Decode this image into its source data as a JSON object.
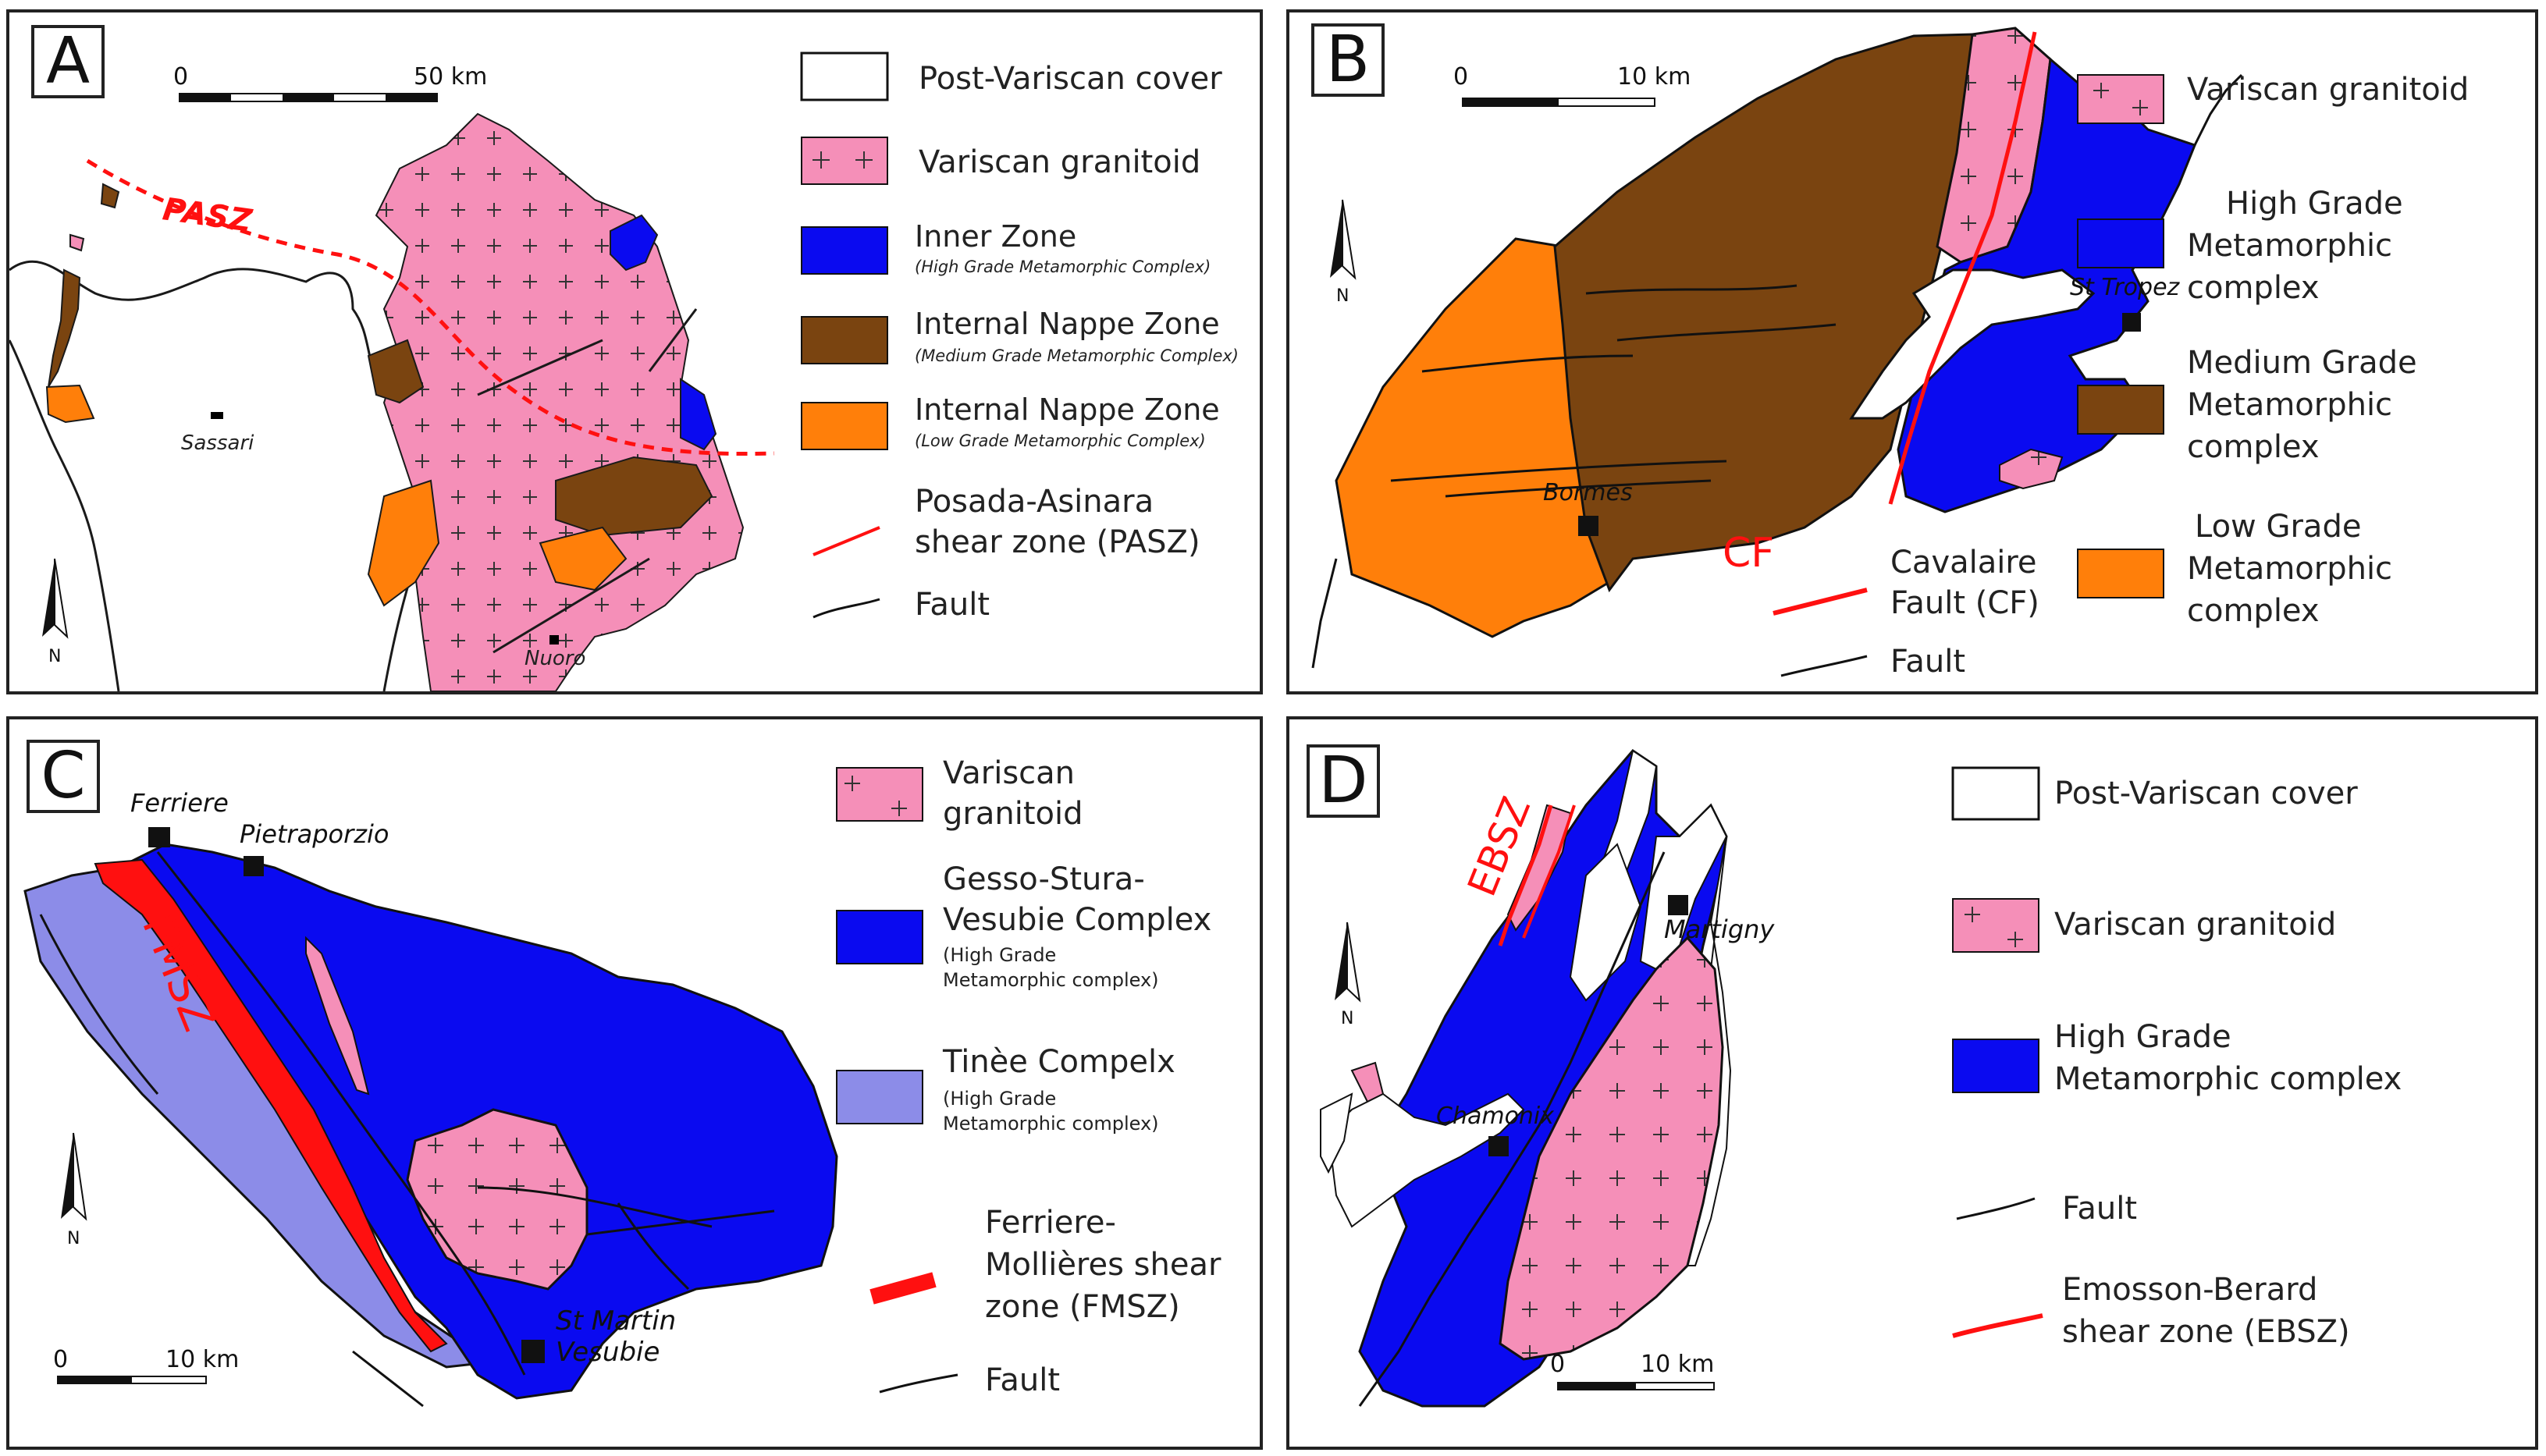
{
  "colors": {
    "cover": "#ffffff",
    "granitoid": "#f58fb8",
    "high_grade": "#0a0af0",
    "medium_grade": "#7a4410",
    "low_grade": "#ff7f0a",
    "tinee": "#8c8ce8",
    "shear": "#ff1010",
    "outline": "#1a1a1a"
  },
  "panelA": {
    "letter": "A",
    "scale": {
      "zero": "0",
      "end": "50 km"
    },
    "north": "N",
    "map": {
      "pasz": "PASZ",
      "sassari": "Sassari",
      "nuoro": "Nuoro"
    },
    "legend": {
      "cover": "Post-Variscan cover",
      "granitoid": "Variscan granitoid",
      "inner_title": "Inner Zone",
      "inner_sub": "(High Grade Metamorphic Complex)",
      "nappe_med_title": "Internal Nappe Zone",
      "nappe_med_sub": "(Medium Grade Metamorphic Complex)",
      "nappe_low_title": "Internal Nappe Zone",
      "nappe_low_sub": "(Low Grade Metamorphic Complex)",
      "shear_1": "Posada-Asinara",
      "shear_2": "shear zone (PASZ)",
      "fault": "Fault"
    }
  },
  "panelB": {
    "letter": "B",
    "scale": {
      "zero": "0",
      "end": "10 km"
    },
    "north": "N",
    "map": {
      "st_tropez": "St Tropez",
      "bormes": "Bormes",
      "cf": "CF"
    },
    "legend": {
      "granitoid": "Variscan granitoid",
      "high_1": "High Grade",
      "high_2": "Metamorphic",
      "high_3": "complex",
      "med_1": "Medium Grade",
      "med_2": "Metamorphic",
      "med_3": "complex",
      "low_1": "Low Grade",
      "low_2": "Metamorphic",
      "low_3": "complex",
      "cf_1": "Cavalaire",
      "cf_2": "Fault (CF)",
      "fault": "Fault"
    }
  },
  "panelC": {
    "letter": "C",
    "scale": {
      "zero": "0",
      "end": "10 km"
    },
    "north": "N",
    "map": {
      "ferriere": "Ferriere",
      "pietraporzio": "Pietraporzio",
      "fmsz": "FMSZ",
      "st_martin_1": "St Martin",
      "st_martin_2": "Vesubie"
    },
    "legend": {
      "gran_1": "Variscan",
      "gran_2": "granitoid",
      "gsv_1": "Gesso-Stura-",
      "gsv_2": "Vesubie Complex",
      "gsv_sub1": "(High Grade",
      "gsv_sub2": "Metamorphic complex)",
      "tinee_1": "Tinèe Compelx",
      "tinee_sub1": "(High Grade",
      "tinee_sub2": "Metamorphic complex)",
      "fmsz_1": "Ferriere-",
      "fmsz_2": "Mollières shear",
      "fmsz_3": "zone (FMSZ)",
      "fault": "Fault"
    }
  },
  "panelD": {
    "letter": "D",
    "scale": {
      "zero": "0",
      "end": "10 km"
    },
    "north": "N",
    "map": {
      "ebsz": "EBSZ",
      "martigny": "Martigny",
      "chamonix": "Chamonix"
    },
    "legend": {
      "cover": "Post-Variscan cover",
      "granitoid": "Variscan granitoid",
      "high_1": "High Grade",
      "high_2": "Metamorphic complex",
      "fault": "Fault",
      "ebsz_1": "Emosson-Berard",
      "ebsz_2": "shear zone (EBSZ)"
    }
  }
}
